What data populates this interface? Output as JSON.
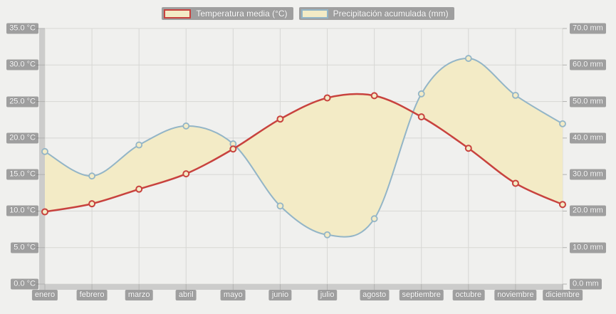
{
  "legend": {
    "items": [
      {
        "label": "Temperatura media (°C)",
        "series": "temperature",
        "swatch_border": "#c8423e",
        "swatch_fill": "#f3ebc6"
      },
      {
        "label": "Precipitación acumulada (mm)",
        "series": "precipitation",
        "swatch_border": "#93b5c7",
        "swatch_fill": "#f3ebc6"
      }
    ]
  },
  "axes": {
    "left": {
      "unit": "°C",
      "tick_labels": [
        "0.0 °C",
        "5.0 °C",
        "10.0 °C",
        "15.0 °C",
        "20.0 °C",
        "25.0 °C",
        "30.0 °C",
        "35.0 °C"
      ]
    },
    "right": {
      "unit": "mm",
      "tick_labels": [
        "0.0 mm",
        "10.0 mm",
        "20.0 mm",
        "30.0 mm",
        "40.0 mm",
        "50.0 mm",
        "60.0 mm",
        "70.0 mm"
      ]
    },
    "x": {
      "tick_labels": [
        "enero",
        "febrero",
        "marzo",
        "abril",
        "mayo",
        "junio",
        "julio",
        "agosto",
        "septiembre",
        "octubre",
        "noviembre",
        "diciembre"
      ]
    }
  },
  "chart_data": {
    "type": "line",
    "categories": [
      "enero",
      "febrero",
      "marzo",
      "abril",
      "mayo",
      "junio",
      "julio",
      "agosto",
      "septiembre",
      "octubre",
      "noviembre",
      "diciembre"
    ],
    "series": [
      {
        "name": "Temperatura media (°C)",
        "axis": "left",
        "color": "#c8423e",
        "line_width": 2.5,
        "values": [
          9.9,
          11.0,
          13.0,
          15.1,
          18.5,
          22.6,
          25.5,
          25.8,
          22.9,
          18.6,
          13.8,
          10.9
        ]
      },
      {
        "name": "Precipitación acumulada (mm)",
        "axis": "right",
        "color": "#93b5c7",
        "line_width": 2,
        "values": [
          36.3,
          29.6,
          38.1,
          43.3,
          38.4,
          21.4,
          13.5,
          17.9,
          52.1,
          61.8,
          51.7,
          43.9
        ]
      }
    ],
    "left_axis": {
      "min": 0,
      "max": 35,
      "step": 5,
      "unit": "°C"
    },
    "right_axis": {
      "min": 0,
      "max": 70,
      "step": 10,
      "unit": "mm"
    },
    "fill_between_color": "#f3ebc6",
    "grid": true,
    "legend_position": "top"
  },
  "colors": {
    "background": "#f0f0ee",
    "gridline": "#d7d7d4",
    "axis_wall": "#cccccb",
    "axis_tick": "#b2b2b0",
    "label_chip_bg": "#9f9f9f",
    "label_text": "#fdfdfd",
    "temperature_line": "#c8423e",
    "precipitation_line": "#93b5c7",
    "area_fill": "#f3ebc6",
    "marker_fill": "#f3ebc6"
  }
}
